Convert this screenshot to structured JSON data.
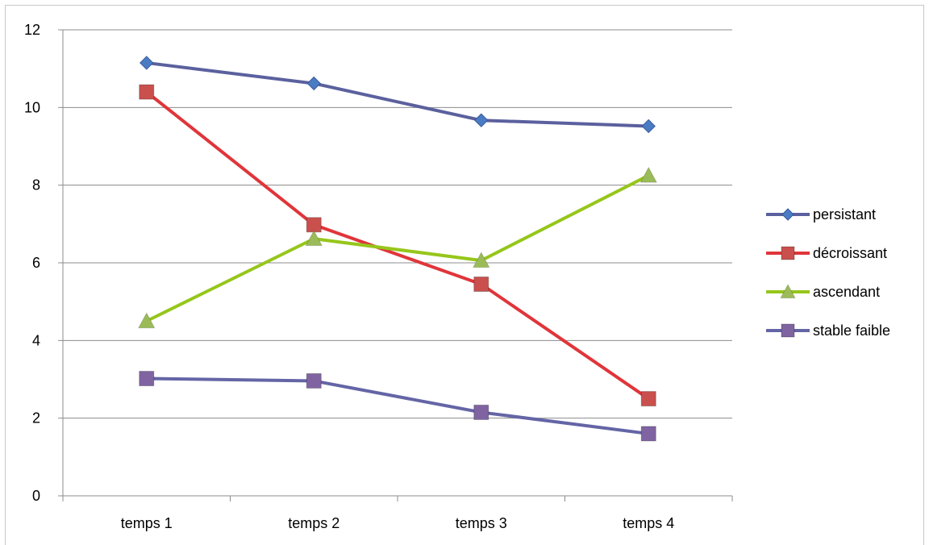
{
  "chart_data": {
    "type": "line",
    "title": "",
    "xlabel": "",
    "ylabel": "",
    "categories": [
      "temps 1",
      "temps 2",
      "temps 3",
      "temps 4"
    ],
    "ylim": [
      0,
      12
    ],
    "yticks": [
      "0",
      "2",
      "4",
      "6",
      "8",
      "10",
      "12"
    ],
    "grid": true,
    "legend_position": "right",
    "series": [
      {
        "name": "persistant",
        "values": [
          11.15,
          10.62,
          9.67,
          9.52
        ],
        "color": "#5b609e",
        "marker": "diamond",
        "marker_color": "#4a7cc4"
      },
      {
        "name": "décroissant",
        "values": [
          10.4,
          6.98,
          5.45,
          2.5
        ],
        "color": "#e0353a",
        "marker": "square",
        "marker_color": "#c9504d"
      },
      {
        "name": "ascendant",
        "values": [
          4.5,
          6.62,
          6.06,
          8.25
        ],
        "color": "#96c61b",
        "marker": "triangle",
        "marker_color": "#9bbb59"
      },
      {
        "name": "stable faible",
        "values": [
          3.02,
          2.96,
          2.15,
          1.6
        ],
        "color": "#6465a6",
        "marker": "square",
        "marker_color": "#8064a2"
      }
    ]
  }
}
